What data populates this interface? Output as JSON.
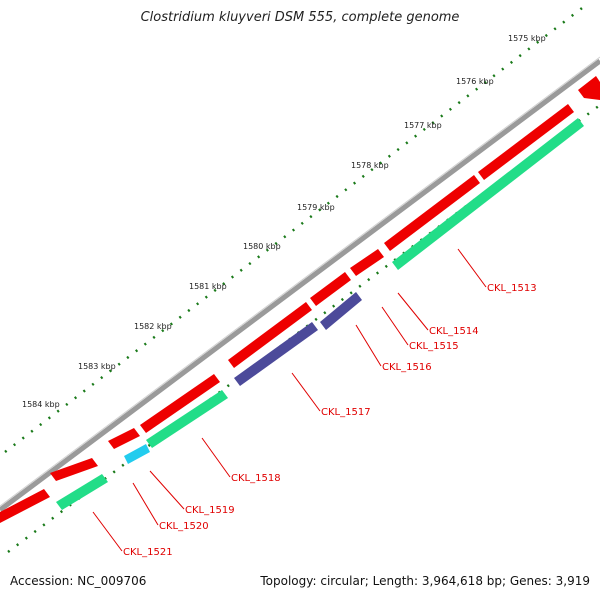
{
  "title": "Clostridium kluyveri DSM 555, complete genome",
  "footer": {
    "accession": "Accession: NC_009706",
    "summary": "Topology: circular; Length: 3,964,618 bp; Genes: 3,919"
  },
  "scale_labels": [
    "1575 kbp",
    "1576 kbp",
    "1577 kbp",
    "1578 kbp",
    "1579 kbp",
    "1580 kbp",
    "1581 kbp",
    "1582 kbp",
    "1583 kbp",
    "1584 kbp"
  ],
  "gene_labels": [
    "CKL_1513",
    "CKL_1514",
    "CKL_1515",
    "CKL_1516",
    "CKL_1517",
    "CKL_1518",
    "CKL_1519",
    "CKL_1520",
    "CKL_1521"
  ],
  "colors": {
    "backbone": "#888888",
    "gene_red": "#ee0000",
    "gene_green": "#22dd88",
    "gene_purple": "#4c4a9a",
    "gene_cyan": "#22ccee",
    "ticks": "#1a7a1a",
    "label_red": "#e00000"
  }
}
